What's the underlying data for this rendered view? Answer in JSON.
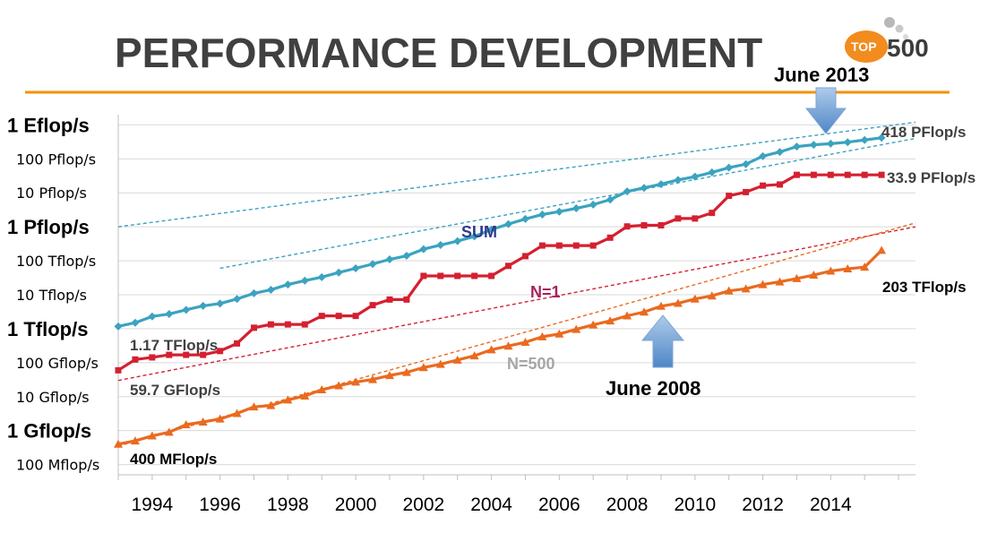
{
  "slide": {
    "title": "PERFORMANCE DEVELOPMENT",
    "logo": {
      "top": "TOP",
      "number": "500",
      "top_color": "#f28c1e"
    },
    "rule_color": "#f39200"
  },
  "chart_data": {
    "type": "line",
    "y_scale": "log",
    "y_unit": "Gflop/s",
    "ylim": [
      0.05,
      2000000000
    ],
    "xlim": [
      1993,
      2016.5
    ],
    "x_ticks": [
      1994,
      1996,
      1998,
      2000,
      2002,
      2004,
      2006,
      2008,
      2010,
      2012,
      2014
    ],
    "x_tick_labels": [
      "1994",
      "1996",
      "1998",
      "2000",
      "2002",
      "2004",
      "2006",
      "2008",
      "2010",
      "2012",
      "2014"
    ],
    "y_ticks": [
      {
        "value": 1000000000,
        "label": "1 Eflop/s",
        "major": true
      },
      {
        "value": 100000000,
        "label": "100 Pflop/s",
        "major": false
      },
      {
        "value": 10000000,
        "label": "10 Pflop/s",
        "major": false
      },
      {
        "value": 1000000,
        "label": "1 Pflop/s",
        "major": true
      },
      {
        "value": 100000,
        "label": "100 Tflop/s",
        "major": false
      },
      {
        "value": 10000,
        "label": "10 Tflop/s",
        "major": false
      },
      {
        "value": 1000,
        "label": "1 Tflop/s",
        "major": true
      },
      {
        "value": 100,
        "label": "100 Gflop/s",
        "major": false
      },
      {
        "value": 10,
        "label": "10 Gflop/s",
        "major": false
      },
      {
        "value": 1,
        "label": "1 Gflop/s",
        "major": true
      },
      {
        "value": 0.1,
        "label": "100 Mflop/s",
        "major": false
      }
    ],
    "grid": {
      "horizontal": true,
      "vertical": false
    },
    "series": [
      {
        "name": "SUM",
        "color": "#3ba3c0",
        "marker": "diamond",
        "x": [
          1993.0,
          1993.5,
          1994.0,
          1994.5,
          1995.0,
          1995.5,
          1996.0,
          1996.5,
          1997.0,
          1997.5,
          1998.0,
          1998.5,
          1999.0,
          1999.5,
          2000.0,
          2000.5,
          2001.0,
          2001.5,
          2002.0,
          2002.5,
          2003.0,
          2003.5,
          2004.0,
          2004.5,
          2005.0,
          2005.5,
          2006.0,
          2006.5,
          2007.0,
          2007.5,
          2008.0,
          2008.5,
          2009.0,
          2009.5,
          2010.0,
          2010.5,
          2011.0,
          2011.5,
          2012.0,
          2012.5,
          2013.0,
          2013.5,
          2014.0,
          2014.5,
          2015.0,
          2015.5
        ],
        "y": [
          1170,
          1500,
          2300,
          2700,
          3600,
          4700,
          5500,
          7500,
          11000,
          14000,
          20000,
          26000,
          33000,
          45000,
          60000,
          80000,
          110000,
          140000,
          220000,
          290000,
          380000,
          520000,
          830000,
          1200000,
          1700000,
          2300000,
          2800000,
          3500000,
          4500000,
          6300000,
          11000000,
          14000000,
          18000000,
          24000000,
          30000000,
          40000000,
          55000000,
          70000000,
          120000000,
          160000000,
          230000000,
          260000000,
          280000000,
          310000000,
          360000000,
          418000000
        ]
      },
      {
        "name": "N=1",
        "color": "#d42031",
        "marker": "square",
        "x": [
          1993.0,
          1993.5,
          1994.0,
          1994.5,
          1995.0,
          1995.5,
          1996.0,
          1996.5,
          1997.0,
          1997.5,
          1998.0,
          1998.5,
          1999.0,
          1999.5,
          2000.0,
          2000.5,
          2001.0,
          2001.5,
          2002.0,
          2002.5,
          2003.0,
          2003.5,
          2004.0,
          2004.5,
          2005.0,
          2005.5,
          2006.0,
          2006.5,
          2007.0,
          2007.5,
          2008.0,
          2008.5,
          2009.0,
          2009.5,
          2010.0,
          2010.5,
          2011.0,
          2011.5,
          2012.0,
          2012.5,
          2013.0,
          2013.5,
          2014.0,
          2014.5,
          2015.0,
          2015.5
        ],
        "y": [
          59.7,
          124,
          143,
          170,
          170,
          170,
          220,
          368,
          1068,
          1338,
          1338,
          1338,
          2379,
          2379,
          2379,
          4938,
          7226,
          7226,
          35860,
          35860,
          35860,
          35860,
          35860,
          70720,
          136800,
          280600,
          280600,
          280600,
          280600,
          478200,
          1026000,
          1105000,
          1105000,
          1759000,
          1759000,
          2566000,
          8162000,
          10510000,
          16320000,
          17590000,
          33860000,
          33860000,
          33860000,
          33860000,
          33860000,
          33860000
        ]
      },
      {
        "name": "N=500",
        "color": "#ea6a1f",
        "marker": "triangle",
        "x": [
          1993.0,
          1993.5,
          1994.0,
          1994.5,
          1995.0,
          1995.5,
          1996.0,
          1996.5,
          1997.0,
          1997.5,
          1998.0,
          1998.5,
          1999.0,
          1999.5,
          2000.0,
          2000.5,
          2001.0,
          2001.5,
          2002.0,
          2002.5,
          2003.0,
          2003.5,
          2004.0,
          2004.5,
          2005.0,
          2005.5,
          2006.0,
          2006.5,
          2007.0,
          2007.5,
          2008.0,
          2008.5,
          2009.0,
          2009.5,
          2010.0,
          2010.5,
          2011.0,
          2011.5,
          2012.0,
          2012.5,
          2013.0,
          2013.5,
          2014.0,
          2014.5,
          2015.0,
          2015.5
        ],
        "y": [
          0.4,
          0.5,
          0.7,
          0.9,
          1.5,
          1.8,
          2.2,
          3.2,
          5.0,
          5.5,
          8.0,
          10.5,
          16,
          21,
          27,
          32,
          42,
          52,
          72,
          90,
          120,
          160,
          240,
          310,
          400,
          580,
          700,
          960,
          1300,
          1700,
          2400,
          3100,
          4600,
          5600,
          7500,
          9300,
          13000,
          15000,
          20000,
          24000,
          30000,
          38000,
          50000,
          58000,
          65000,
          203000
        ]
      }
    ],
    "trendlines": [
      {
        "of": "SUM",
        "color": "#3ba3c0",
        "x": [
          1993.0,
          2016.5
        ],
        "y": [
          1000000,
          1200000000
        ]
      },
      {
        "of": "SUM",
        "color": "#3ba3c0",
        "x": [
          1996.0,
          2016.5
        ],
        "y": [
          60000,
          400000000
        ]
      },
      {
        "of": "N=1",
        "color": "#d42031",
        "x": [
          1993.0,
          2016.5
        ],
        "y": [
          30,
          1000000
        ]
      },
      {
        "of": "N=500",
        "color": "#ea6a1f",
        "x": [
          1993.0,
          2016.5
        ],
        "y": [
          0.35,
          1300000
        ]
      }
    ],
    "series_labels": {
      "SUM": {
        "text": "SUM",
        "color": "#2e3a8c"
      },
      "N=1": {
        "text": "N=1",
        "color": "#a4235b"
      },
      "N=500": {
        "text": "N=500",
        "color": "#a6a6a6"
      }
    },
    "value_annotations": {
      "sum_start": "1.17 TFlop/s",
      "n1_start": "59.7 GFlop/s",
      "n500_start": "400 MFlop/s",
      "sum_end": "418 PFlop/s",
      "n1_end": "33.9 PFlop/s",
      "n500_end": "203 TFlop/s"
    },
    "events": [
      {
        "label": "June 2013",
        "x": 2013.0,
        "arrow": "down"
      },
      {
        "label": "June 2008",
        "x": 2008.0,
        "arrow": "up"
      }
    ]
  }
}
